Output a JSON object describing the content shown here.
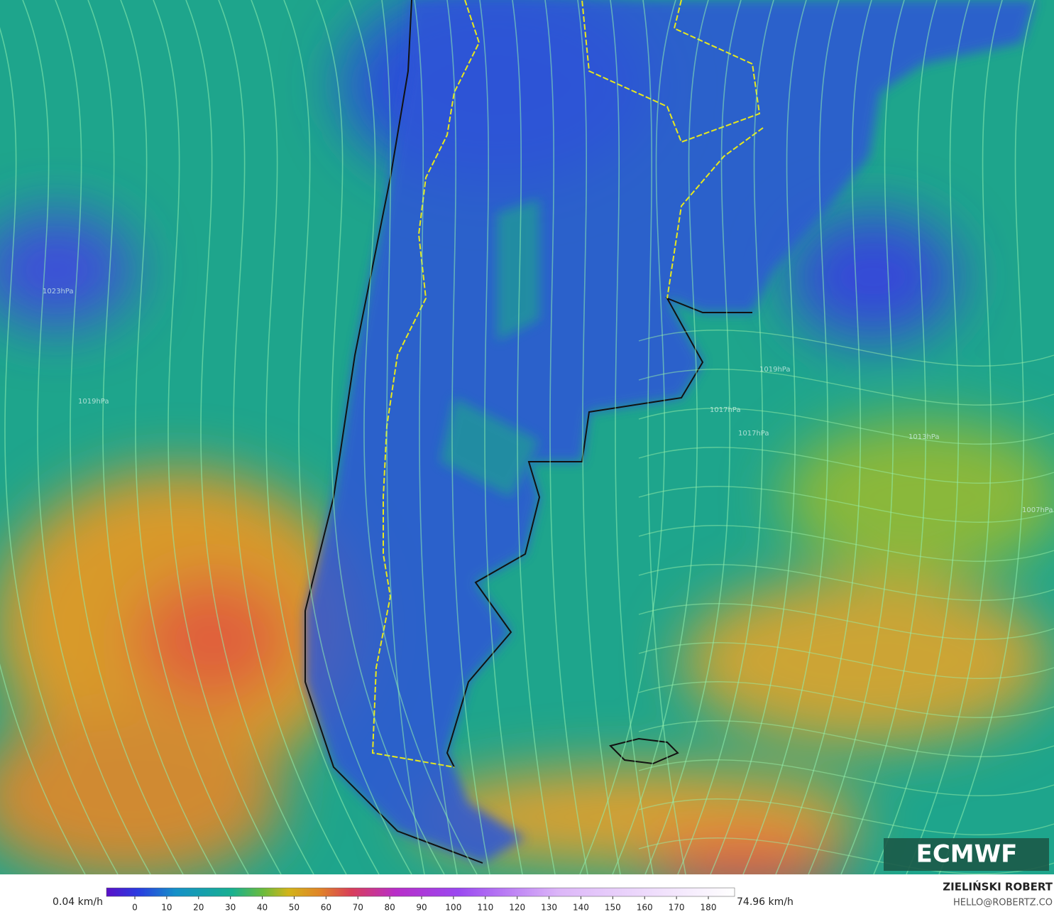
{
  "legend": {
    "min_label": "0.04 km/h",
    "max_label": "74.96 km/h",
    "ticks": [
      0,
      10,
      20,
      30,
      40,
      50,
      60,
      70,
      80,
      90,
      100,
      110,
      120,
      130,
      140,
      150,
      160,
      170,
      180
    ]
  },
  "logo": "ECMWF",
  "author": {
    "name": "ZIELIŃSKI ROBERT",
    "email": "HELLO@ROBERTZ.CO"
  },
  "isobars": [
    "1023hPa",
    "1019hPa",
    "1017hPa",
    "1019hPa",
    "1017hPa",
    "1013hPa",
    "1007hPa"
  ]
}
